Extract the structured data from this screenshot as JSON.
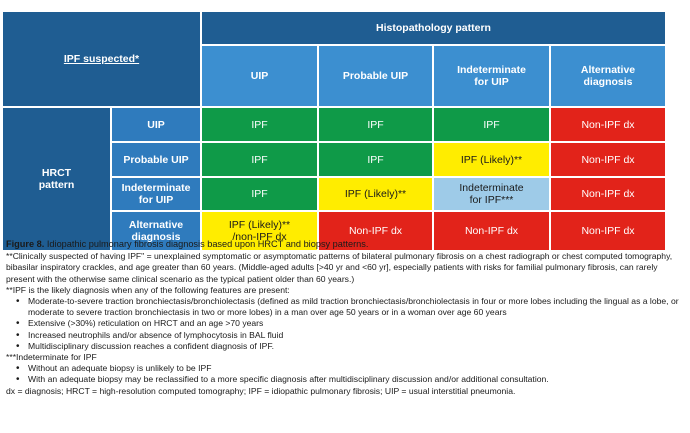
{
  "table": {
    "corner": "IPF suspected*",
    "histo_title": "Histopathology pattern",
    "col_headers": [
      "UIP",
      "Probable UIP",
      "Indeterminate for UIP",
      "Alternative diagnosis"
    ],
    "row_group": "HRCT pattern",
    "row_headers": [
      "UIP",
      "Probable UIP",
      "Indeterminate for UIP",
      "Alternative diagnosis"
    ],
    "rows": [
      [
        "IPF",
        "IPF",
        "IPF",
        "Non-IPF dx"
      ],
      [
        "IPF",
        "IPF",
        "IPF (Likely)**",
        "Non-IPF dx"
      ],
      [
        "IPF",
        "IPF (Likely)**",
        "Indeterminate for IPF***",
        "Non-IPF dx"
      ],
      [
        "IPF (Likely)** /non-IPF dx",
        "Non-IPF dx",
        "Non-IPF dx",
        "Non-IPF dx"
      ]
    ],
    "colors": {
      "green": "#0f9a48",
      "red": "#e2231a",
      "yellow": "#ffed00",
      "light_blue": "#9ecbe8",
      "header_dark": "#1f5d92",
      "header_mid": "#2f7bbd",
      "header_light": "#3c8fd0"
    }
  },
  "caption": {
    "figure_label": "Figure 8.",
    "figure_title": "Idiopathic pulmonary fibrosis diagnosis based upon HRCT and biopsy patterns.",
    "note1": "**Clinically suspected of having IPF\" = unexplained symptomatic or asymptomatic patterns of bilateral pulmonary fibrosis on a chest radiograph or chest computed tomography, bibasilar inspiratory crackles, and age greater than 60 years. (Middle-aged adults [>40 yr and <60 yr], especially patients with risks for familial pulmonary fibrosis, can rarely present with the otherwise same clinical scenario as the typical patient older than 60 years.)",
    "note2_intro": "**IPF is the likely diagnosis when any of the following features are present:",
    "note2_items": [
      "Moderate-to-severe traction bronchiectasis/bronchiolectasis (defined as mild traction bronchiectasis/bronchiolectasis in four or more lobes including the lingual as a lobe, or moderate to severe traction bronchiectasis in two or more lobes) in a man over age 50 years or in a woman over age 60 years",
      "Extensive (>30%) reticulation on HRCT and an age >70 years",
      "Increased neutrophils and/or absence of lymphocytosis in BAL fluid",
      "Multidisciplinary discussion reaches a confident diagnosis of IPF."
    ],
    "note3_intro": "***Indeterminate for IPF",
    "note3_items": [
      "Without an adequate biopsy is unlikely to be IPF",
      "With an adequate biopsy may be reclassified to a more specific diagnosis after multidisciplinary discussion and/or additional consultation."
    ],
    "abbreviations": "dx = diagnosis; HRCT = high-resolution computed tomography; IPF = idiopathic pulmonary fibrosis; UIP = usual interstitial pneumonia."
  }
}
